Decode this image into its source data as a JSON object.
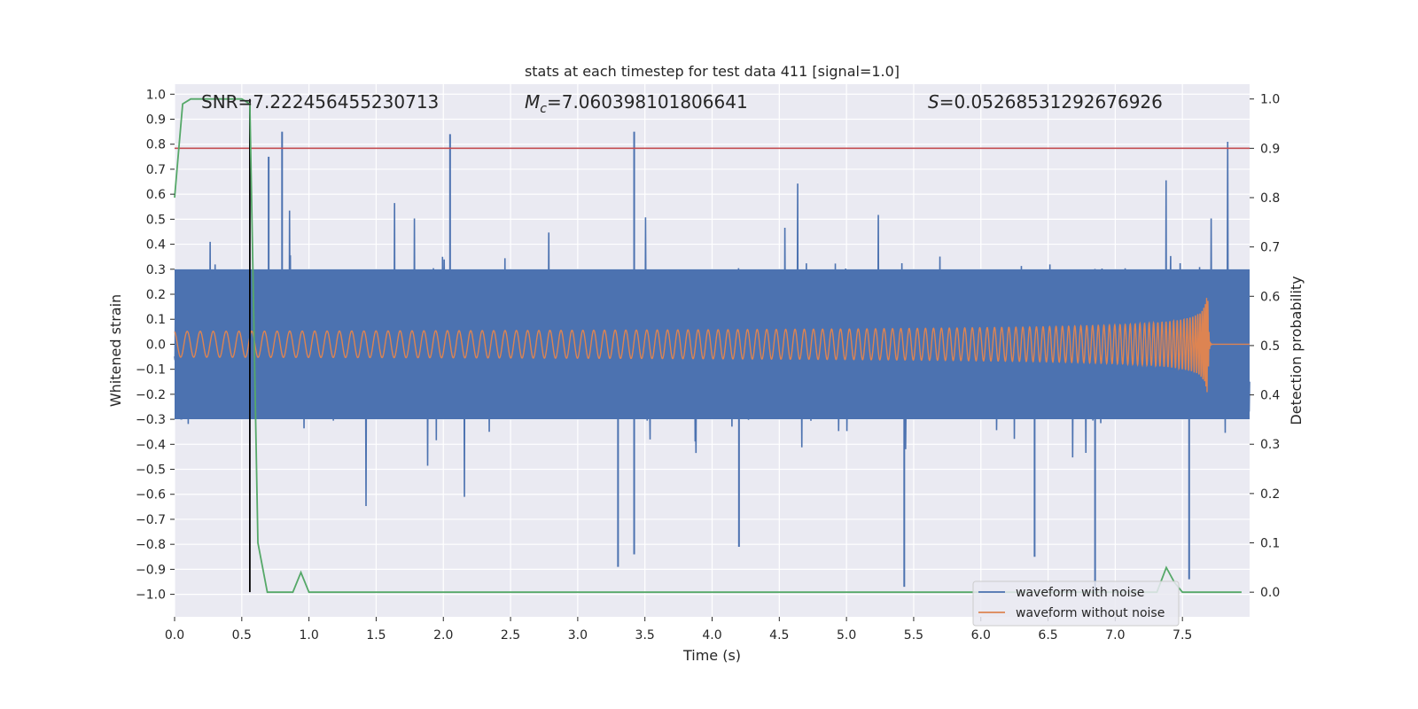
{
  "chart_data": {
    "type": "line",
    "title": "stats at each timestep for test data 411 [signal=1.0]",
    "xlabel": "Time (s)",
    "ylabel_left": "Whitened strain",
    "ylabel_right": "Detection probability",
    "xlim": [
      0.0,
      8.0
    ],
    "ylim_left": [
      -1.09,
      1.04
    ],
    "ylim_right": [
      -0.05,
      1.03
    ],
    "xticks": [
      0.0,
      0.5,
      1.0,
      1.5,
      2.0,
      2.5,
      3.0,
      3.5,
      4.0,
      4.5,
      5.0,
      5.5,
      6.0,
      6.5,
      7.0,
      7.5
    ],
    "xtick_labels": [
      "0.0",
      "0.5",
      "1.0",
      "1.5",
      "2.0",
      "2.5",
      "3.0",
      "3.5",
      "4.0",
      "4.5",
      "5.0",
      "5.5",
      "6.0",
      "6.5",
      "7.0",
      "7.5"
    ],
    "yticks_left": [
      1.0,
      0.9,
      0.8,
      0.7,
      0.6,
      0.5,
      0.4,
      0.3,
      0.2,
      0.1,
      0.0,
      -0.1,
      -0.2,
      -0.3,
      -0.4,
      -0.5,
      -0.6,
      -0.7,
      -0.8,
      -0.9,
      -1.0
    ],
    "ytick_labels_left": [
      "1.0",
      "0.9",
      "0.8",
      "0.7",
      "0.6",
      "0.5",
      "0.4",
      "0.3",
      "0.2",
      "0.1",
      "0.0",
      "−0.1",
      "−0.2",
      "−0.3",
      "−0.4",
      "−0.5",
      "−0.6",
      "−0.7",
      "−0.8",
      "−0.9",
      "−1.0"
    ],
    "yticks_right": [
      1.0,
      0.9,
      0.8,
      0.7,
      0.6,
      0.5,
      0.4,
      0.3,
      0.2,
      0.1,
      0.0
    ],
    "ytick_labels_right": [
      "1.0",
      "0.9",
      "0.8",
      "0.7",
      "0.6",
      "0.5",
      "0.4",
      "0.3",
      "0.2",
      "0.1",
      "0.0"
    ],
    "stats": {
      "snr_label": "SNR=7.222456455230713",
      "mc_symbol": "M",
      "mc_subscript": "c",
      "mc_value": "=7.060398101806641",
      "s_symbol": "S",
      "s_value": "=0.05268531292676926"
    },
    "threshold_probability": 0.9,
    "detection_time": 0.56,
    "detection_probability": {
      "x": [
        0.0,
        0.06,
        0.12,
        0.5,
        0.56,
        0.62,
        0.69,
        0.75,
        0.88,
        0.94,
        1.0,
        1.06,
        7.25,
        7.31,
        7.38,
        7.44,
        7.5,
        7.56,
        7.62,
        7.69,
        7.75,
        7.81,
        7.88,
        7.94
      ],
      "y": [
        0.8,
        0.99,
        1.0,
        1.0,
        0.99,
        0.1,
        0.0,
        0.0,
        0.0,
        0.04,
        0.0,
        0.0,
        0.0,
        0.0,
        0.05,
        0.02,
        0.0,
        0.0,
        0.0,
        0.0,
        0.0,
        0.0,
        0.0,
        0.0
      ]
    },
    "series": [
      {
        "name": "waveform with noise",
        "description": "whitened noisy strain, amplitude roughly ±0.35 with spikes to ±0.85",
        "values": [
          0.85,
          0.84,
          0.75,
          0.85,
          -0.89,
          -0.84,
          -0.81,
          -0.97,
          -0.85,
          -1.0,
          -0.94
        ],
        "x": [
          0.8,
          2.05,
          0.7,
          3.42,
          3.3,
          3.42,
          4.2,
          5.43,
          6.4,
          6.85,
          7.55
        ]
      },
      {
        "name": "waveform without noise",
        "description": "chirp from 0 to ~7.69 s, amplitude rising from 0.02 to 0.23 then ringdown",
        "x": [
          0.0,
          7.69,
          8.0
        ],
        "values": [
          0.02,
          0.23,
          0.0
        ]
      }
    ],
    "legend": [
      "waveform with noise",
      "waveform without noise"
    ],
    "legend_position": "lower right",
    "colors": {
      "noise": "#4c72b0",
      "clean": "#dd8452",
      "probability": "#55a868",
      "threshold": "#c44e52",
      "detection_line": "#000000",
      "background": "#eaeaf2",
      "grid": "#ffffff"
    }
  }
}
